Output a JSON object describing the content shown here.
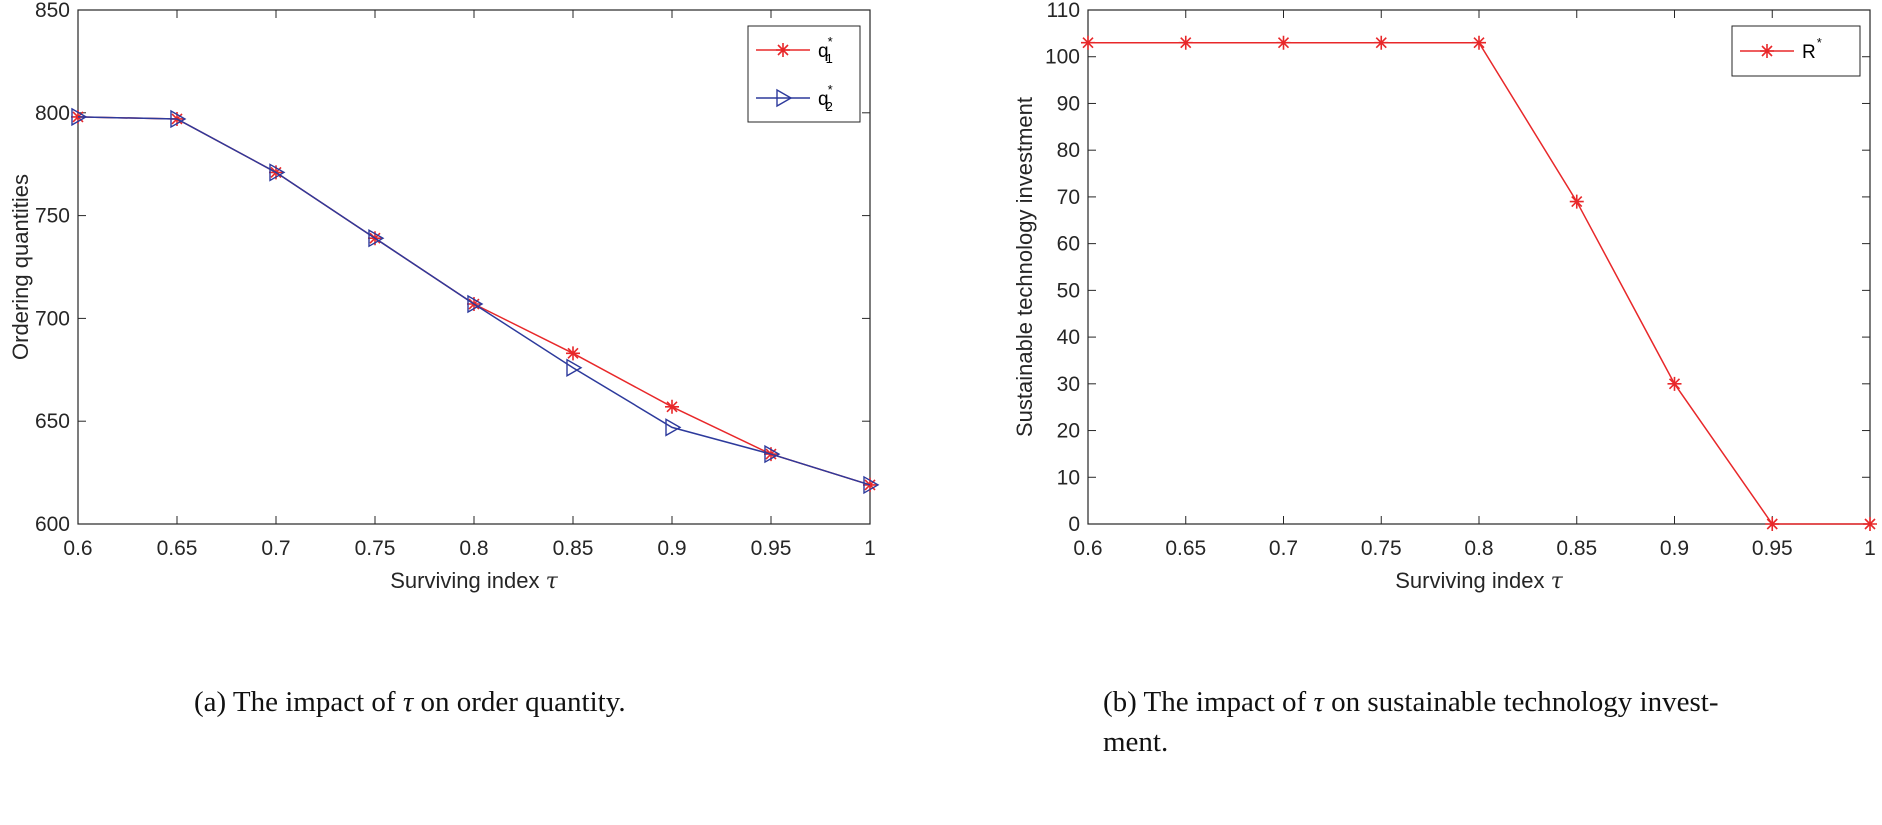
{
  "chart_data": [
    {
      "type": "line",
      "x": [
        0.6,
        0.65,
        0.7,
        0.75,
        0.8,
        0.85,
        0.9,
        0.95,
        1
      ],
      "xticks": [
        "0.6",
        "0.65",
        "0.7",
        "0.75",
        "0.8",
        "0.85",
        "0.9",
        "0.95",
        "1"
      ],
      "yticks": [
        "600",
        "650",
        "700",
        "750",
        "800",
        "850"
      ],
      "xlim": [
        0.6,
        1
      ],
      "ylim": [
        600,
        850
      ],
      "xlabel": "Surviving index τ",
      "ylabel": "Ordering quantities",
      "legend_position": "top-right",
      "series": [
        {
          "name": "q1*",
          "label_base": "q",
          "label_sub": "1",
          "label_sup": "*",
          "color": "#e8282a",
          "marker": "asterisk",
          "values": [
            798,
            797,
            771,
            739,
            707,
            683,
            657,
            634,
            619
          ]
        },
        {
          "name": "q2*",
          "label_base": "q",
          "label_sub": "2",
          "label_sup": "*",
          "color": "#2d3a9c",
          "marker": "triangle-right",
          "values": [
            798,
            797,
            771,
            739,
            707,
            676,
            647,
            634,
            619
          ]
        }
      ],
      "caption": {
        "prefix": "(a)  The impact of ",
        "symbol": "τ",
        "suffix": " on order quantity."
      }
    },
    {
      "type": "line",
      "x": [
        0.6,
        0.65,
        0.7,
        0.75,
        0.8,
        0.85,
        0.9,
        0.95,
        1
      ],
      "xticks": [
        "0.6",
        "0.65",
        "0.7",
        "0.75",
        "0.8",
        "0.85",
        "0.9",
        "0.95",
        "1"
      ],
      "yticks": [
        "0",
        "10",
        "20",
        "30",
        "40",
        "50",
        "60",
        "70",
        "80",
        "90",
        "100",
        "110"
      ],
      "xlim": [
        0.6,
        1
      ],
      "ylim": [
        0,
        110
      ],
      "xlabel": "Surviving index τ",
      "ylabel": "Sustainable technology investment",
      "legend_position": "top-right",
      "series": [
        {
          "name": "R*",
          "label_base": "R",
          "label_sub": "",
          "label_sup": "*",
          "color": "#e8282a",
          "marker": "asterisk",
          "values": [
            103,
            103,
            103,
            103,
            103,
            69,
            30,
            0,
            0
          ]
        }
      ],
      "caption": {
        "prefix": "(b)  The impact of ",
        "symbol": "τ",
        "suffix": " on sustainable technology invest-",
        "line2": "ment."
      }
    }
  ]
}
